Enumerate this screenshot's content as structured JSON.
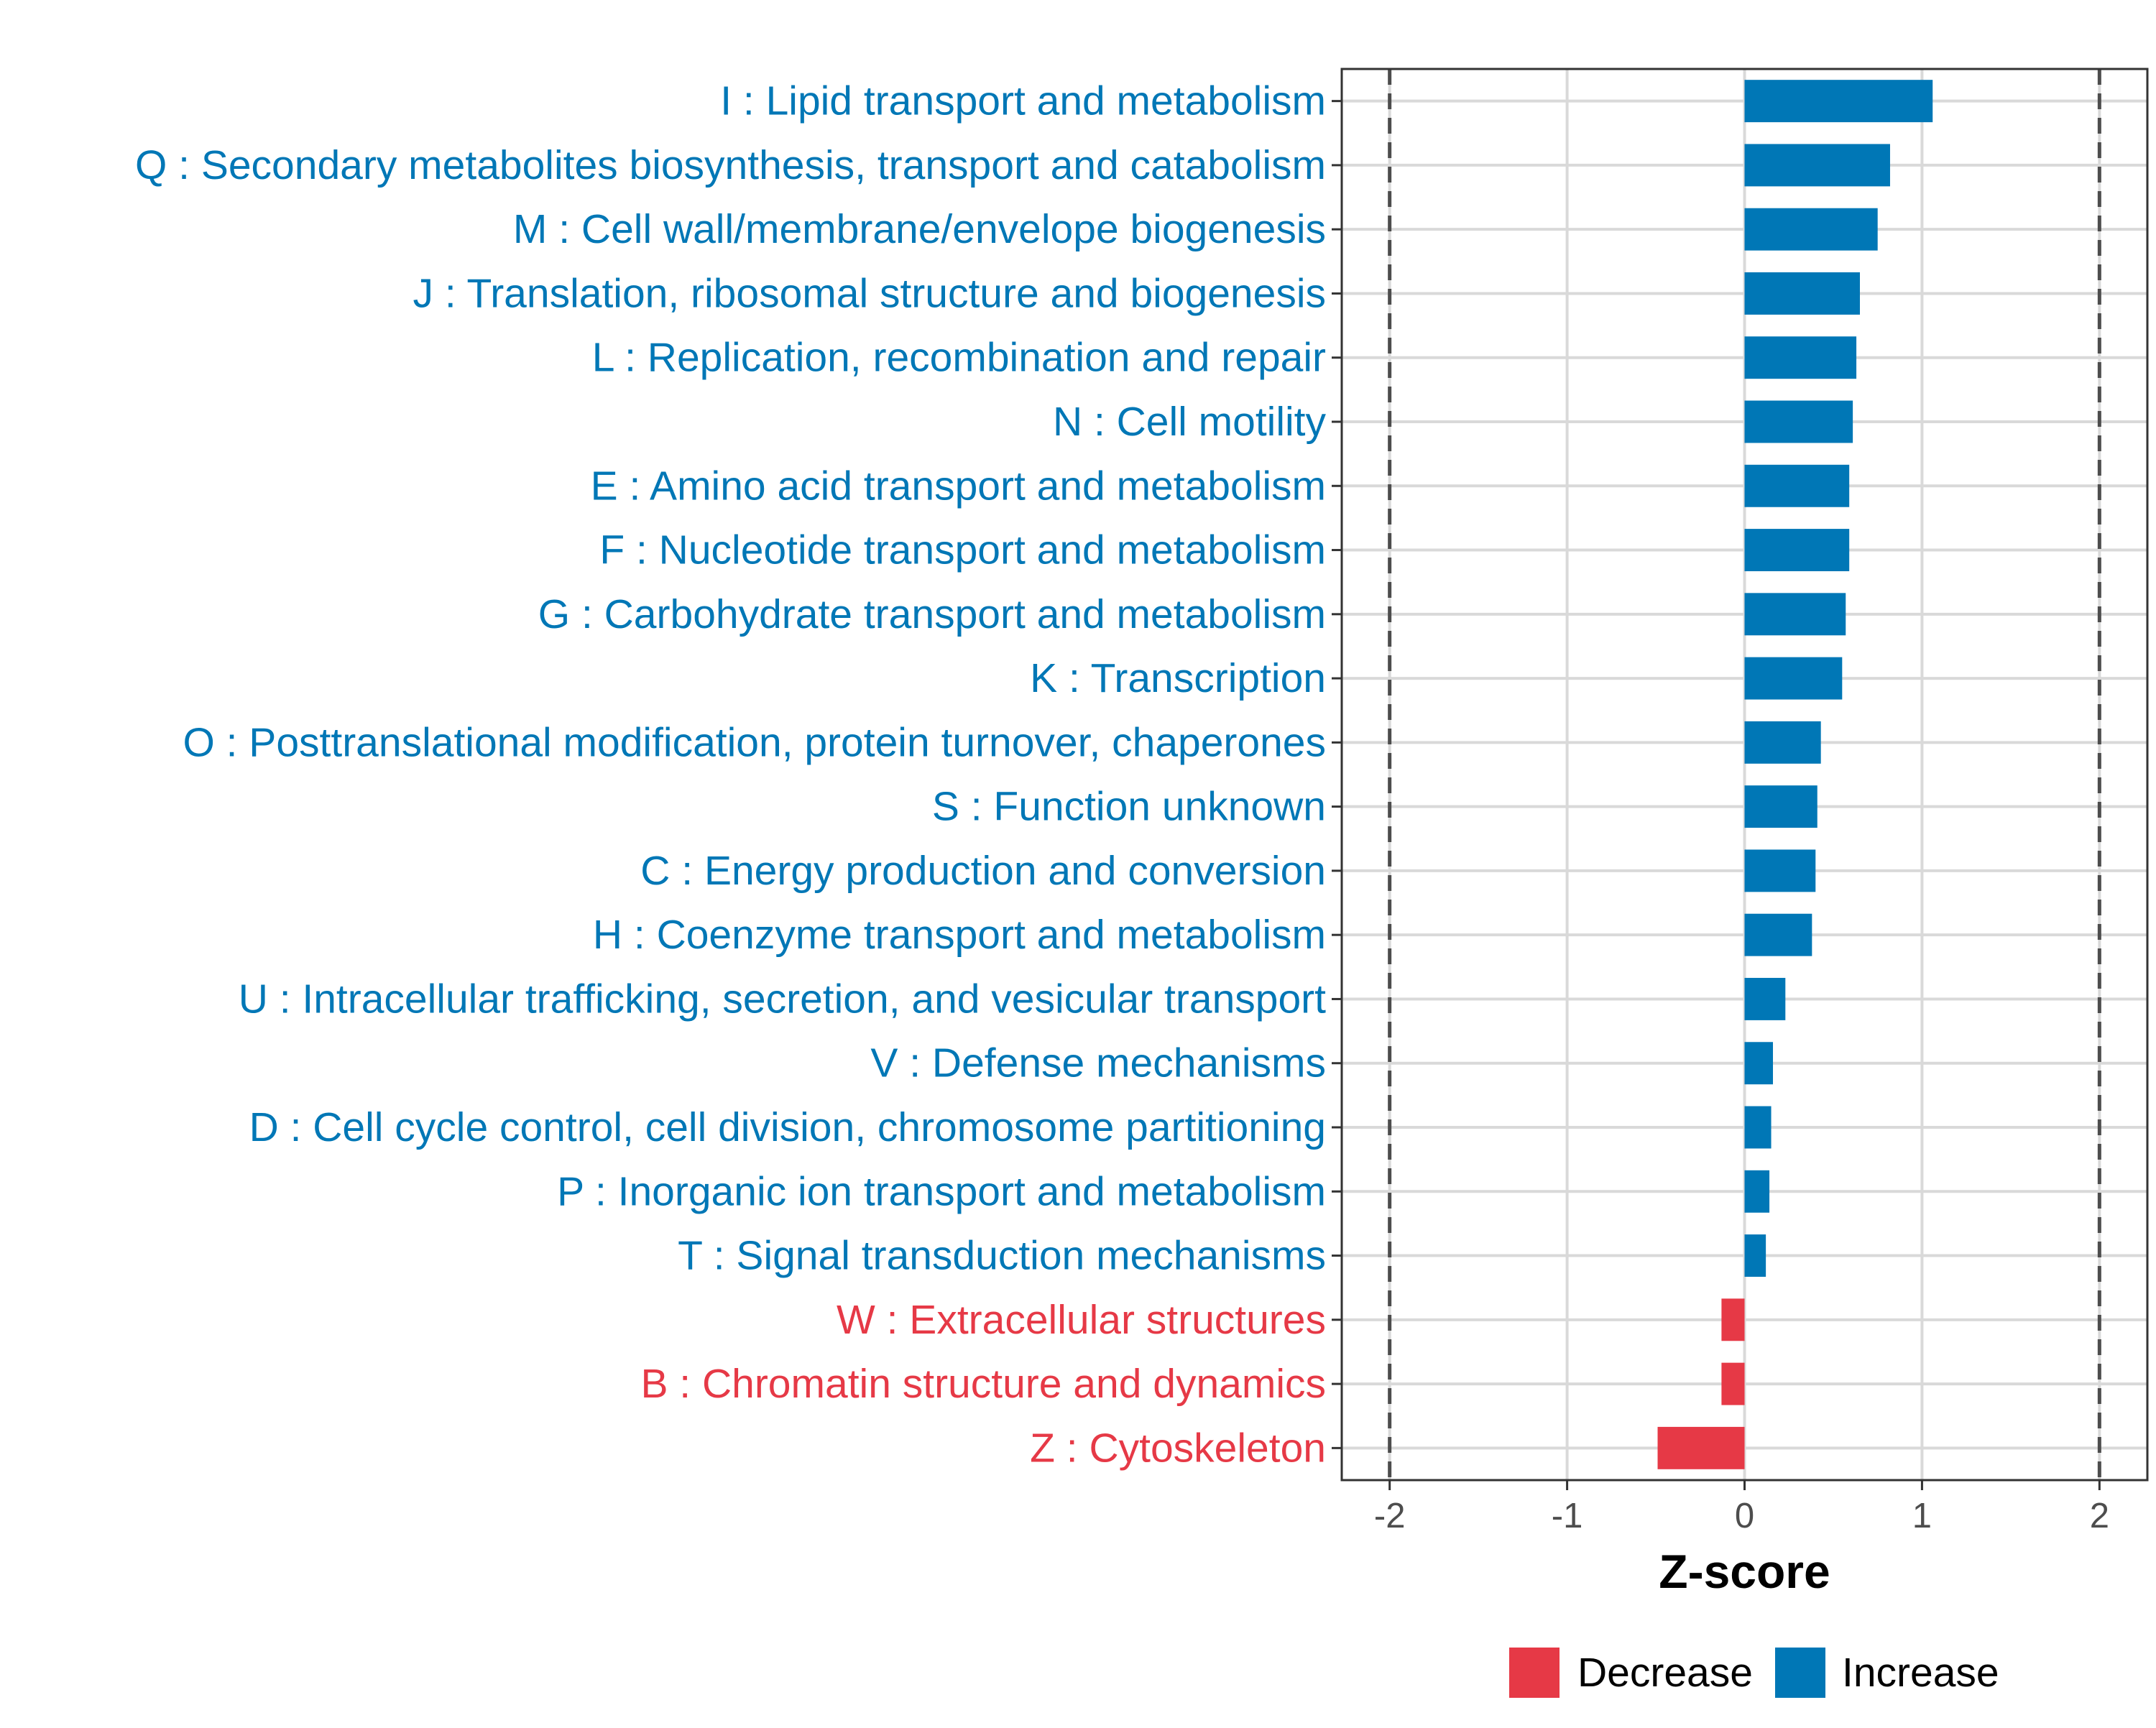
{
  "chart_data": {
    "type": "bar",
    "orientation": "horizontal",
    "title": "",
    "xlabel": "Z-score",
    "ylabel": "",
    "xlim": [
      -2.27,
      2.27
    ],
    "xticks": [
      -2,
      -1,
      0,
      1,
      2
    ],
    "xtick_labels": [
      "-2",
      "-1",
      "0",
      "1",
      "2"
    ],
    "reference_lines": [
      -2,
      2
    ],
    "grid": true,
    "categories": [
      "I : Lipid transport and metabolism",
      "Q : Secondary metabolites biosynthesis, transport and catabolism",
      "M : Cell wall/membrane/envelope biogenesis",
      "J : Translation, ribosomal structure and biogenesis",
      "L : Replication, recombination and repair",
      "N : Cell motility",
      "E : Amino acid transport and metabolism",
      "F : Nucleotide transport and metabolism",
      "G : Carbohydrate transport and metabolism",
      "K : Transcription",
      "O : Posttranslational modification, protein turnover, chaperones",
      "S : Function unknown",
      "C : Energy production and conversion",
      "H : Coenzyme transport and metabolism",
      "U : Intracellular trafficking, secretion, and vesicular transport",
      "V : Defense mechanisms",
      "D : Cell cycle control, cell division, chromosome partitioning",
      "P : Inorganic ion transport and metabolism",
      "T : Signal transduction mechanisms",
      "W : Extracellular structures",
      "B : Chromatin structure and dynamics",
      "Z : Cytoskeleton"
    ],
    "values": [
      1.06,
      0.82,
      0.75,
      0.65,
      0.63,
      0.61,
      0.59,
      0.59,
      0.57,
      0.55,
      0.43,
      0.41,
      0.4,
      0.38,
      0.23,
      0.16,
      0.15,
      0.14,
      0.12,
      -0.13,
      -0.13,
      -0.49
    ],
    "groups": [
      "Increase",
      "Increase",
      "Increase",
      "Increase",
      "Increase",
      "Increase",
      "Increase",
      "Increase",
      "Increase",
      "Increase",
      "Increase",
      "Increase",
      "Increase",
      "Increase",
      "Increase",
      "Increase",
      "Increase",
      "Increase",
      "Increase",
      "Decrease",
      "Decrease",
      "Decrease"
    ],
    "legend": {
      "placement": "bottom-right",
      "entries": [
        {
          "label": "Decrease",
          "color": "#e63946"
        },
        {
          "label": "Increase",
          "color": "#0077b6"
        }
      ]
    },
    "colors": {
      "Increase": "#0077b6",
      "Decrease": "#e63946",
      "grid": "#d9d9d9",
      "panel_border": "#333333",
      "reference_line": "#4d4d4d"
    }
  }
}
